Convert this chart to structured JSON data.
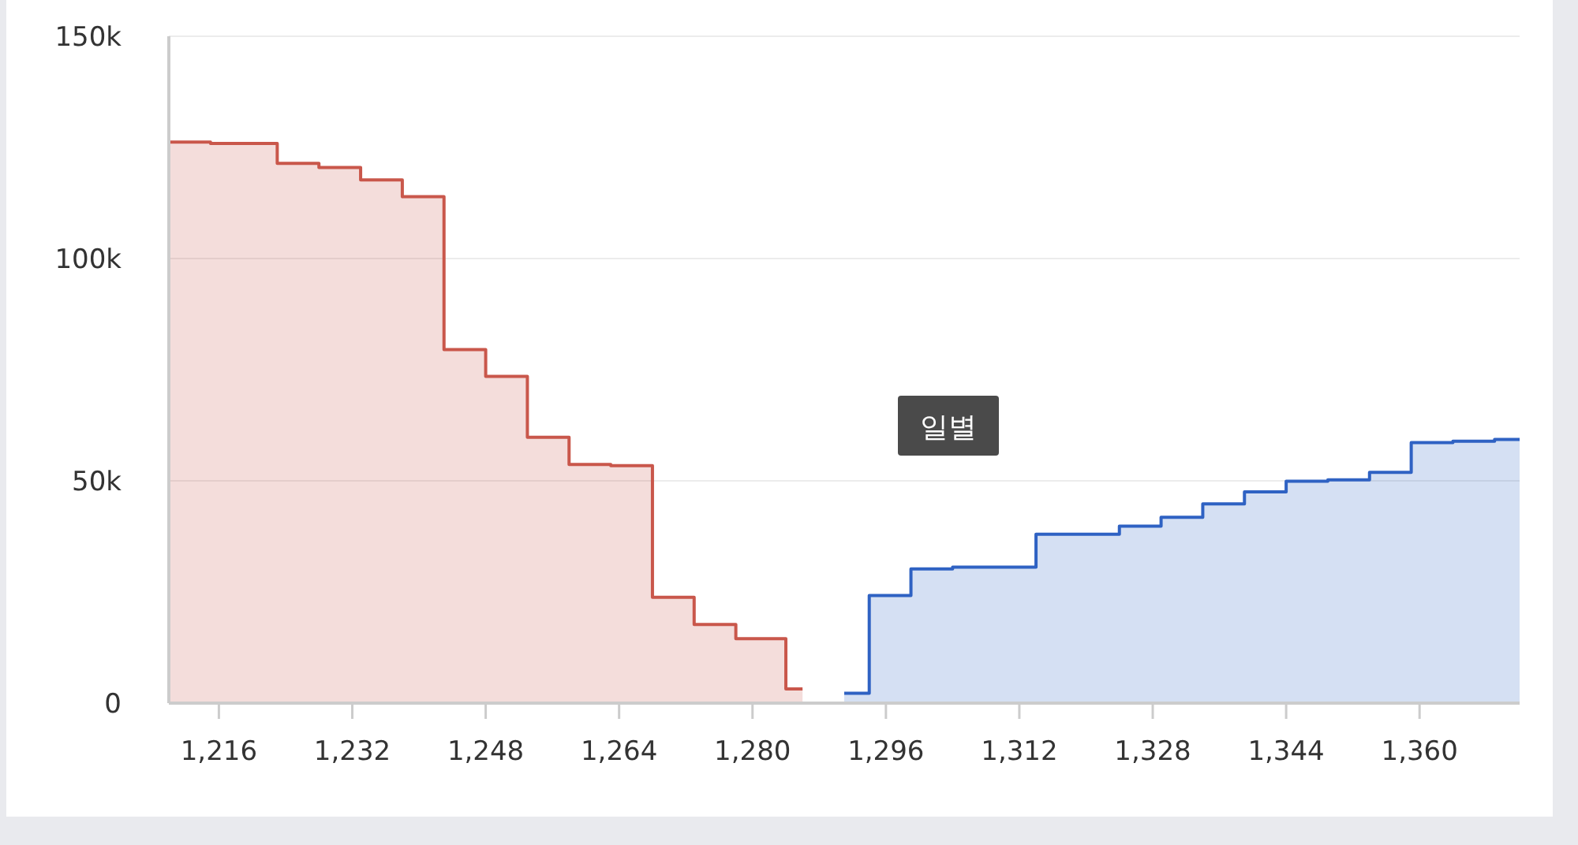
{
  "chart_data": {
    "type": "area",
    "series": [
      {
        "color": "#c9574b",
        "x": [
          1210,
          1215,
          1215,
          1223,
          1223,
          1228,
          1228,
          1233,
          1233,
          1238,
          1238,
          1243,
          1243,
          1248,
          1248,
          1253,
          1253,
          1258,
          1258,
          1263,
          1263,
          1268,
          1268,
          1273,
          1273,
          1278,
          1278,
          1284,
          1284,
          1286
        ],
        "values": [
          126200,
          126200,
          125900,
          125900,
          121400,
          121400,
          120500,
          120500,
          117700,
          117700,
          113900,
          113900,
          79500,
          79500,
          73500,
          73500,
          59800,
          59800,
          53700,
          53700,
          53400,
          53400,
          23800,
          23800,
          17700,
          17700,
          14500,
          14500,
          3200,
          3200
        ]
      },
      {
        "color": "#2f62c3",
        "x": [
          1291,
          1294,
          1294,
          1299,
          1299,
          1304,
          1304,
          1314,
          1314,
          1324,
          1324,
          1329,
          1329,
          1334,
          1334,
          1339,
          1339,
          1344,
          1344,
          1349,
          1349,
          1354,
          1354,
          1359,
          1359,
          1364,
          1364,
          1369,
          1369,
          1372
        ],
        "values": [
          2200,
          2200,
          24200,
          24200,
          30200,
          30200,
          30600,
          30600,
          38000,
          38000,
          39800,
          39800,
          41800,
          41800,
          44800,
          44800,
          47500,
          47500,
          49900,
          49900,
          50200,
          50200,
          51900,
          51900,
          58600,
          58600,
          58900,
          58900,
          59300,
          59300
        ]
      }
    ],
    "xlim": [
      1210,
      1372
    ],
    "xticks": [
      {
        "value": 1216,
        "label": "1,216"
      },
      {
        "value": 1232,
        "label": "1,232"
      },
      {
        "value": 1248,
        "label": "1,248"
      },
      {
        "value": 1264,
        "label": "1,264"
      },
      {
        "value": 1280,
        "label": "1,280"
      },
      {
        "value": 1296,
        "label": "1,296"
      },
      {
        "value": 1312,
        "label": "1,312"
      },
      {
        "value": 1328,
        "label": "1,328"
      },
      {
        "value": 1344,
        "label": "1,344"
      },
      {
        "value": 1360,
        "label": "1,360"
      }
    ],
    "ylim": [
      0,
      150000
    ],
    "yticks": [
      0,
      {
        "value": 50000,
        "label": "50k"
      },
      {
        "value": 100000,
        "label": "100k"
      },
      {
        "value": 150000,
        "label": "150k"
      }
    ],
    "grid": "y",
    "annotations": [
      "일별"
    ]
  }
}
